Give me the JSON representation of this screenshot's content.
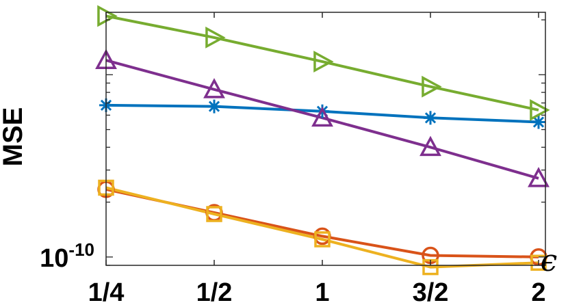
{
  "chart_data": {
    "type": "line",
    "title": "",
    "xlabel": "ϵ",
    "ylabel": "MSE",
    "yscale": "log",
    "grid": false,
    "legend": "none",
    "categories": [
      "1/4",
      "1/2",
      "1",
      "3/2",
      "2"
    ],
    "x": [
      0.25,
      0.5,
      1,
      1.5,
      2
    ],
    "ylim": [
      9e-11,
      2.2e-09
    ],
    "ytick_labels": [
      {
        "value": 1e-10,
        "base": "10",
        "exponent": "-10"
      }
    ],
    "series": [
      {
        "color": "#0072BD",
        "marker": "asterisk",
        "values": [
          6.8e-10,
          6.7e-10,
          6.3e-10,
          5.8e-10,
          5.5e-10
        ]
      },
      {
        "color": "#D95319",
        "marker": "circle",
        "values": [
          2.35e-10,
          1.75e-10,
          1.3e-10,
          1.02e-10,
          1e-10
        ]
      },
      {
        "color": "#EDB120",
        "marker": "square",
        "values": [
          2.4e-10,
          1.72e-10,
          1.25e-10,
          8.8e-11,
          9.3e-11
        ]
      },
      {
        "color": "#7E2F8E",
        "marker": "triangle-up",
        "values": [
          1.2e-09,
          8.3e-10,
          5.8e-10,
          4e-10,
          2.7e-10
        ]
      },
      {
        "color": "#77AC30",
        "marker": "triangle-right",
        "values": [
          2.1e-09,
          1.6e-09,
          1.18e-09,
          8.6e-10,
          6.4e-10
        ]
      }
    ]
  }
}
